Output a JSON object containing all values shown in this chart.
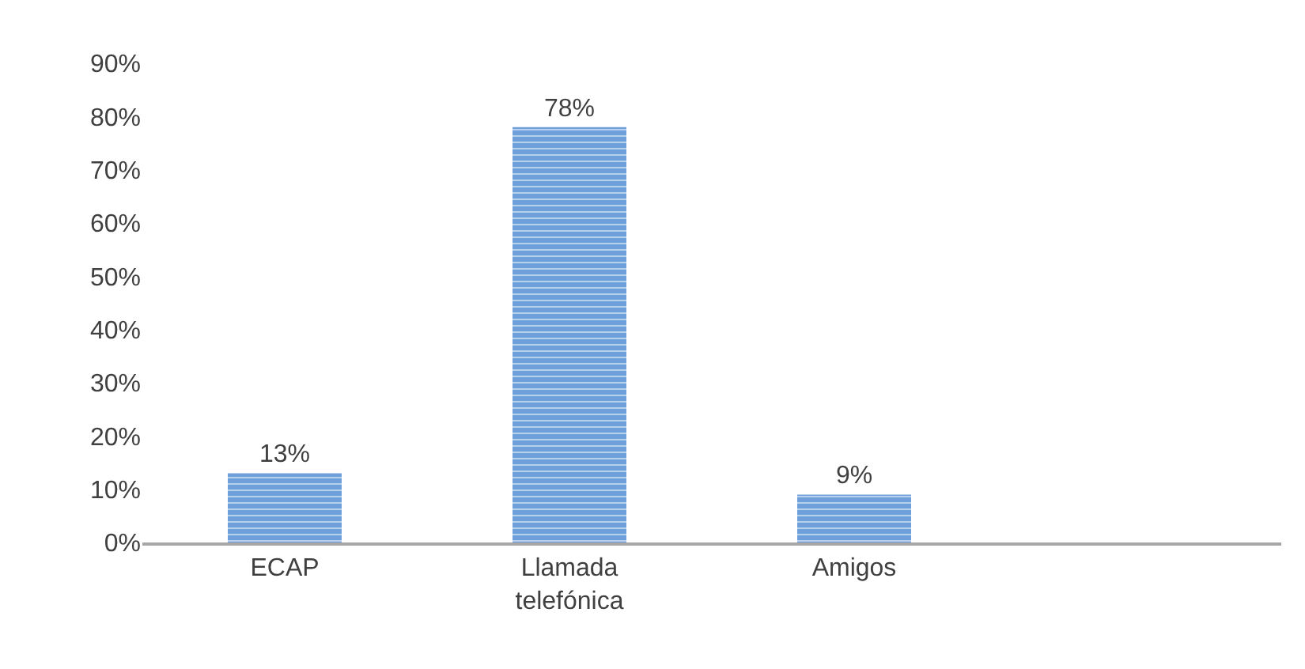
{
  "chart_data": {
    "type": "bar",
    "categories": [
      "ECAP",
      "Llamada telefónica",
      "Amigos",
      null
    ],
    "values": [
      13,
      78,
      9,
      null
    ],
    "value_labels": [
      "13%",
      "78%",
      "9%",
      null
    ],
    "color": "#6fa0dc",
    "ylim": [
      0,
      90
    ],
    "yticks": [
      {
        "value": 0,
        "label": "0%"
      },
      {
        "value": 10,
        "label": "10%"
      },
      {
        "value": 20,
        "label": "20%"
      },
      {
        "value": 30,
        "label": "30%"
      },
      {
        "value": 40,
        "label": "40%"
      },
      {
        "value": 50,
        "label": "50%"
      },
      {
        "value": 60,
        "label": "60%"
      },
      {
        "value": 70,
        "label": "70%"
      },
      {
        "value": 80,
        "label": "80%"
      },
      {
        "value": 90,
        "label": "90%"
      }
    ],
    "legend": false
  }
}
